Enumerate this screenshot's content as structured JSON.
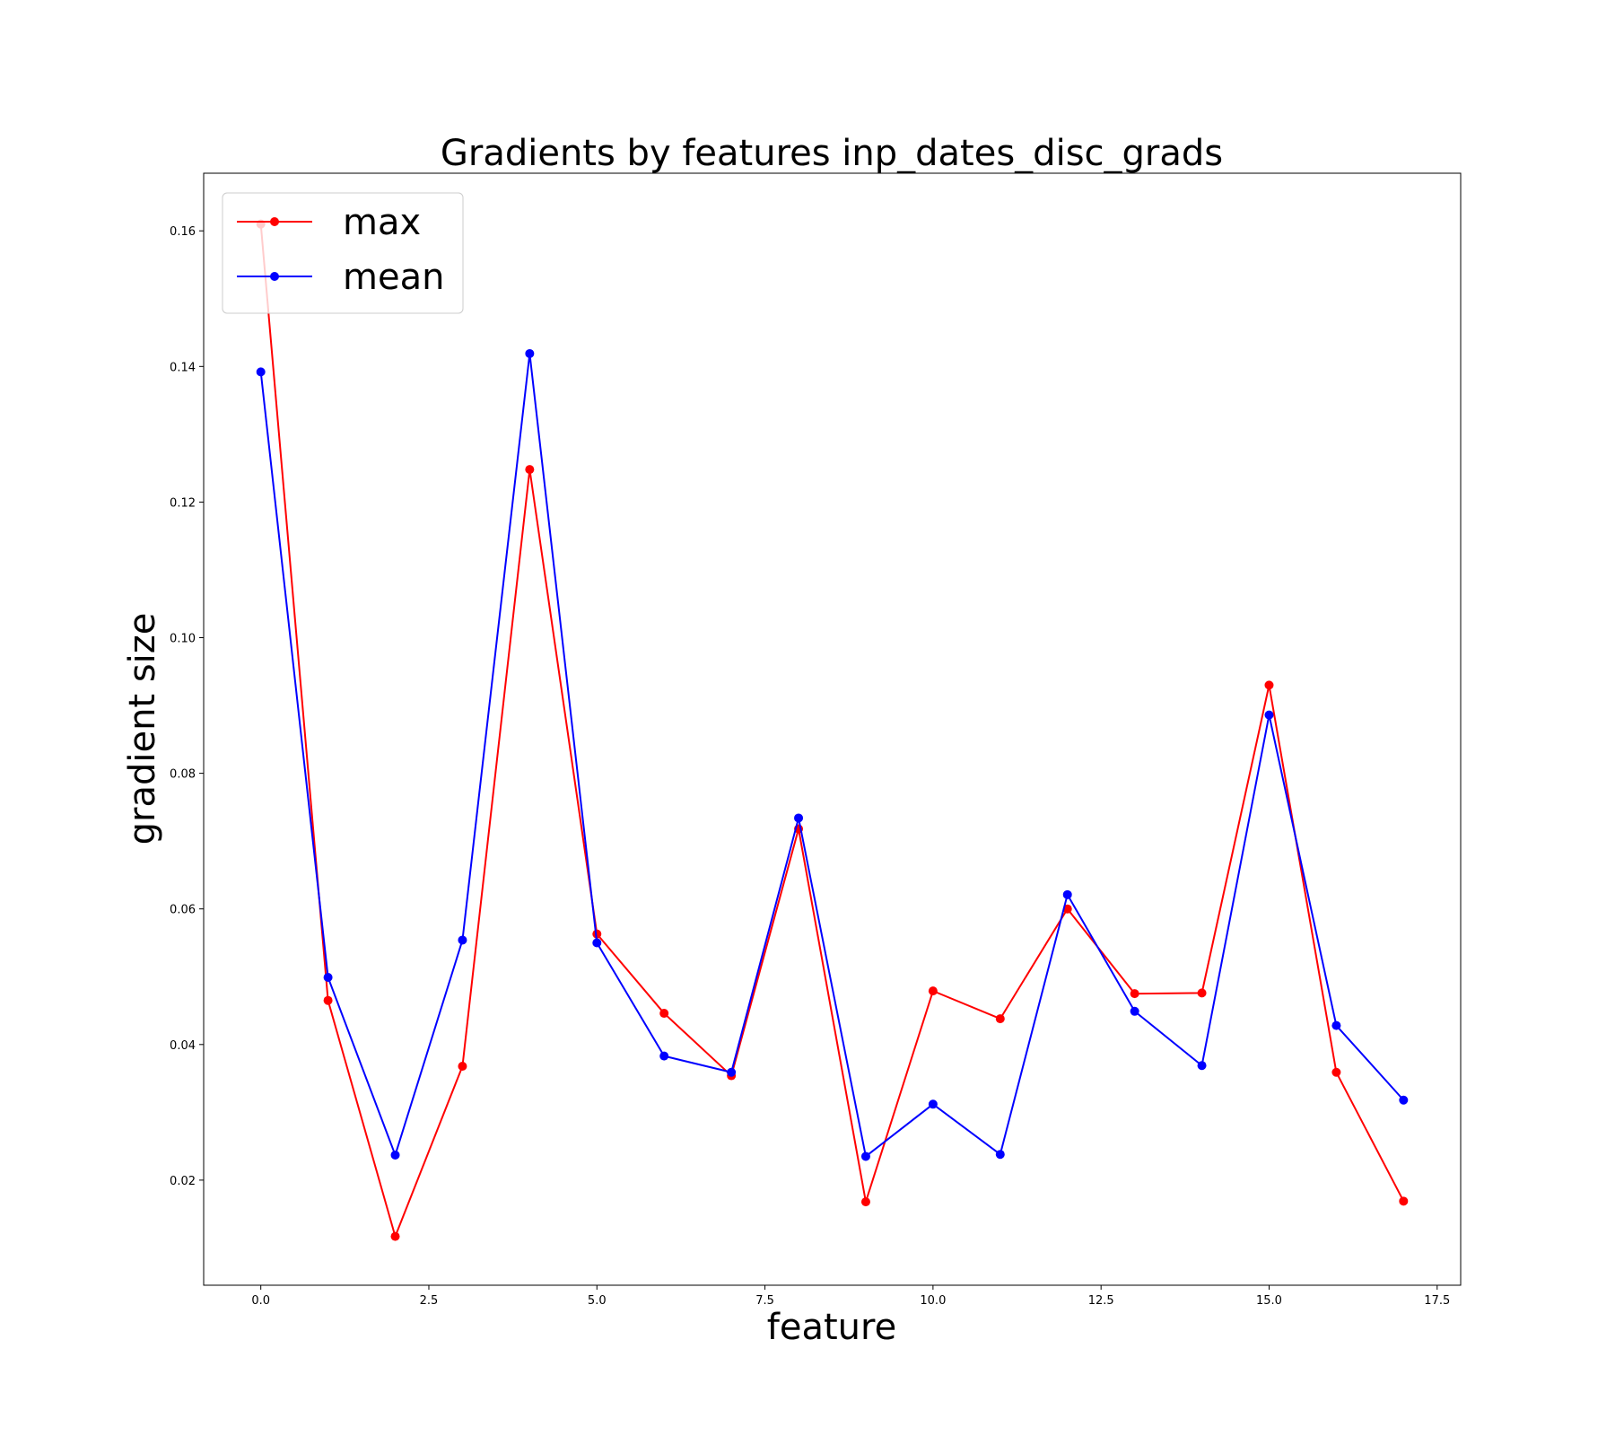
{
  "chart_data": {
    "type": "line",
    "title": "Gradients by features inp_dates_disc_grads",
    "xlabel": "feature",
    "ylabel": "gradient size",
    "xlim": [
      -0.85,
      17.85
    ],
    "ylim": [
      0.0045,
      0.1685
    ],
    "x_ticks": [
      "0.0",
      "2.5",
      "5.0",
      "7.5",
      "10.0",
      "12.5",
      "15.0",
      "17.5"
    ],
    "y_ticks": [
      "0.02",
      "0.04",
      "0.06",
      "0.08",
      "0.10",
      "0.12",
      "0.14",
      "0.16"
    ],
    "grid": false,
    "legend_position": "upper-left",
    "x": [
      0,
      1,
      2,
      3,
      4,
      5,
      6,
      7,
      8,
      9,
      10,
      11,
      12,
      13,
      14,
      15,
      16,
      17
    ],
    "series": [
      {
        "name": "max",
        "color": "#ff0000",
        "values": [
          0.161,
          0.0465,
          0.0117,
          0.0368,
          0.1248,
          0.0563,
          0.0446,
          0.0354,
          0.0718,
          0.0168,
          0.0479,
          0.0438,
          0.06,
          0.0475,
          0.0476,
          0.093,
          0.0359,
          0.0169
        ]
      },
      {
        "name": "mean",
        "color": "#0000ff",
        "values": [
          0.1392,
          0.0499,
          0.0237,
          0.0554,
          0.1419,
          0.055,
          0.0383,
          0.0359,
          0.0734,
          0.0235,
          0.0312,
          0.0238,
          0.0621,
          0.0449,
          0.0369,
          0.0886,
          0.0428,
          0.0318
        ]
      }
    ]
  }
}
